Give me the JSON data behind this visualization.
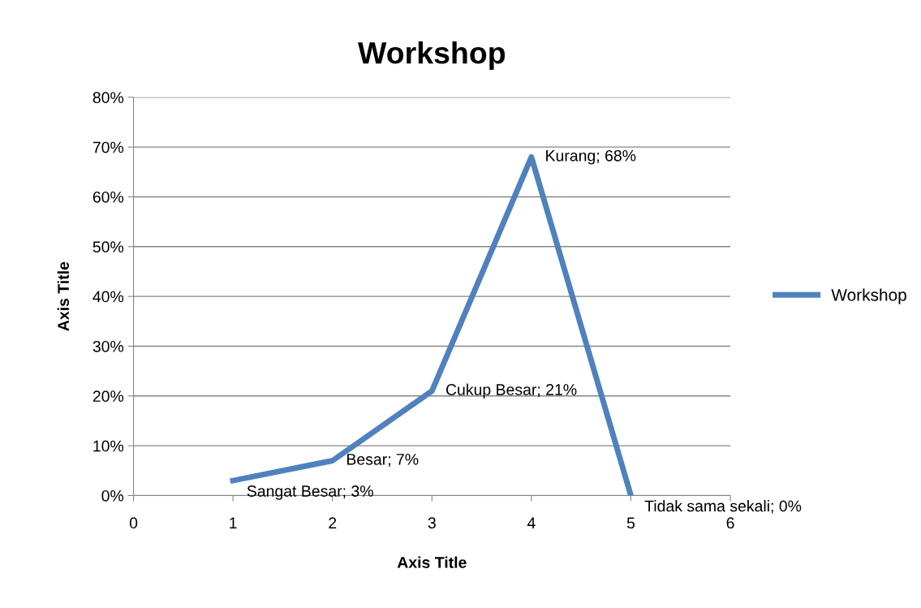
{
  "chart_data": {
    "type": "line",
    "title": "Workshop",
    "xlabel": "Axis Title",
    "ylabel": "Axis Title",
    "x": [
      1,
      2,
      3,
      4,
      5
    ],
    "series": [
      {
        "name": "Workshop",
        "color": "#4f81bd",
        "values": [
          3,
          7,
          21,
          68,
          0
        ],
        "value_labels": [
          "Sangat Besar; 3%",
          "Besar; 7%",
          "Cukup Besar; 21%",
          "Kurang; 68%",
          "Tidak sama sekali; 0%"
        ]
      }
    ],
    "xlim": [
      0,
      6
    ],
    "xticks": [
      0,
      1,
      2,
      3,
      4,
      5,
      6
    ],
    "ylim": [
      0,
      80
    ],
    "yticks": [
      {
        "value": 0,
        "label": "0%"
      },
      {
        "value": 10,
        "label": "10%"
      },
      {
        "value": 20,
        "label": "20%"
      },
      {
        "value": 30,
        "label": "30%"
      },
      {
        "value": 40,
        "label": "40%"
      },
      {
        "value": 50,
        "label": "50%"
      },
      {
        "value": 60,
        "label": "60%"
      },
      {
        "value": 70,
        "label": "70%"
      },
      {
        "value": 80,
        "label": "80%"
      }
    ],
    "grid": "y",
    "legend": "right",
    "marker": "none",
    "line_style": "solid"
  }
}
